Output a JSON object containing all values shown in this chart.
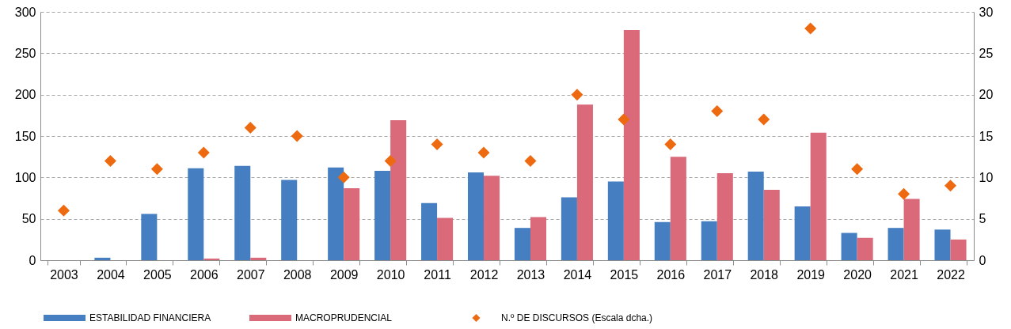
{
  "chart_data": {
    "type": "bar",
    "categories": [
      "2003",
      "2004",
      "2005",
      "2006",
      "2007",
      "2008",
      "2009",
      "2010",
      "2011",
      "2012",
      "2013",
      "2014",
      "2015",
      "2016",
      "2017",
      "2018",
      "2019",
      "2020",
      "2021",
      "2022"
    ],
    "series": [
      {
        "name": "ESTABILIDAD FINANCIERA",
        "color": "#457fc1",
        "values": [
          null,
          3,
          56,
          111,
          114,
          97,
          112,
          108,
          69,
          106,
          39,
          76,
          95,
          46,
          47,
          107,
          65,
          33,
          39,
          37
        ]
      },
      {
        "name": "MACROPRUDENCIAL",
        "color": "#da6a7a",
        "values": [
          null,
          null,
          null,
          2,
          3,
          null,
          87,
          169,
          51,
          102,
          52,
          188,
          278,
          125,
          105,
          85,
          154,
          27,
          74,
          25
        ]
      },
      {
        "name": "N.º DE DISCURSOS (Escala dcha.)",
        "type": "scatter",
        "axis": "y2",
        "marker": "diamond",
        "color": "#ee6a10",
        "values": [
          6,
          12,
          11,
          13,
          16,
          15,
          10,
          12,
          14,
          13,
          12,
          20,
          17,
          14,
          18,
          17,
          28,
          11,
          8,
          9
        ]
      }
    ],
    "ylim": [
      0,
      300
    ],
    "yticks": [
      0,
      50,
      100,
      150,
      200,
      250,
      300
    ],
    "y2lim": [
      0,
      30
    ],
    "y2ticks": [
      0,
      5,
      10,
      15,
      20,
      25,
      30
    ],
    "grid": "y",
    "legend": "bottom"
  }
}
